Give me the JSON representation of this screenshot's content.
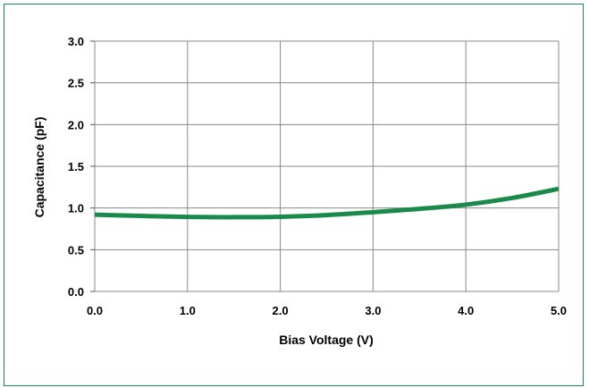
{
  "chart_data": {
    "type": "line",
    "title": "",
    "xlabel": "Bias Voltage (V)",
    "ylabel": "Capacitance (pF)",
    "xlim": [
      0,
      5
    ],
    "ylim": [
      0,
      3
    ],
    "x_ticks": [
      "0.0",
      "1.0",
      "2.0",
      "3.0",
      "4.0",
      "5.0"
    ],
    "y_ticks": [
      "0.0",
      "0.5",
      "1.0",
      "1.5",
      "2.0",
      "2.5",
      "3.0"
    ],
    "grid": true,
    "series": [
      {
        "color": "#1a8a4a",
        "x": [
          0.0,
          0.5,
          1.0,
          1.5,
          2.0,
          2.5,
          3.0,
          3.5,
          4.0,
          4.5,
          5.0
        ],
        "y": [
          0.92,
          0.905,
          0.893,
          0.89,
          0.895,
          0.915,
          0.95,
          0.99,
          1.04,
          1.12,
          1.23
        ]
      }
    ]
  }
}
